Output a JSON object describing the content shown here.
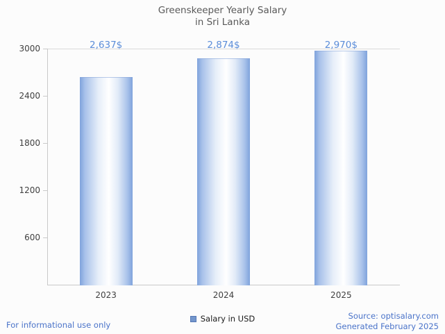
{
  "title": {
    "line1": "Greenskeeper Yearly Salary",
    "line2": "in Sri Lanka"
  },
  "legend": {
    "label": "Salary in USD"
  },
  "footer": {
    "left": "For informational use only",
    "source": "Source: optisalary.com",
    "generated": "Generated February 2025"
  },
  "colors": {
    "accent_value_label": "#5b8dd9",
    "footer_link": "#4a73c9",
    "bar_edge": "#7fa3dc",
    "axis": "#c9c9c9",
    "tick_text": "#404040",
    "title_text": "#595959"
  },
  "chart_data": {
    "type": "bar",
    "title": "Greenskeeper Yearly Salary in Sri Lanka",
    "categories": [
      "2023",
      "2024",
      "2025"
    ],
    "values": [
      2637,
      2874,
      2970
    ],
    "value_labels": [
      "2,637$",
      "2,874$",
      "2,970$"
    ],
    "series_name": "Salary in USD",
    "xlabel": "",
    "ylabel": "",
    "ylim": [
      0,
      3000
    ],
    "y_ticks": [
      600,
      1200,
      1800,
      2400,
      3000
    ],
    "grid": false,
    "legend_position": "bottom"
  }
}
